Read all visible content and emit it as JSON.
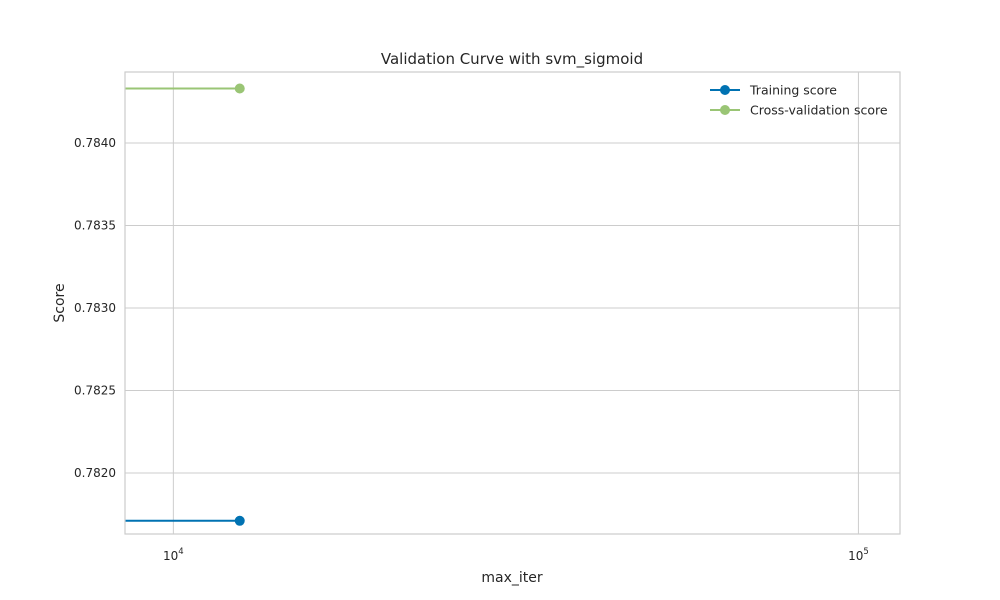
{
  "chart_data": {
    "type": "line",
    "title": "Validation Curve with svm_sigmoid",
    "xlabel": "max_iter",
    "ylabel": "Score",
    "x_scale": "log",
    "xlim": [
      8500,
      115000
    ],
    "ylim": [
      0.78163,
      0.78443
    ],
    "x_ticks": [
      {
        "value": 10000,
        "base": "10",
        "exp": "4"
      },
      {
        "value": 100000,
        "base": "10",
        "exp": "5"
      }
    ],
    "y_ticks": [
      {
        "value": 0.782,
        "label": "0.7820"
      },
      {
        "value": 0.7825,
        "label": "0.7825"
      },
      {
        "value": 0.783,
        "label": "0.7830"
      },
      {
        "value": 0.7835,
        "label": "0.7835"
      },
      {
        "value": 0.784,
        "label": "0.7840"
      }
    ],
    "grid": true,
    "legend_position": "top-right",
    "series": [
      {
        "name": "Training score",
        "color": "#0072b2",
        "x": [
          1000,
          12500
        ],
        "y": [
          0.78171,
          0.78171
        ]
      },
      {
        "name": "Cross-validation score",
        "color": "#9ac575",
        "x": [
          1000,
          12500
        ],
        "y": [
          0.78433,
          0.78433
        ]
      }
    ]
  }
}
